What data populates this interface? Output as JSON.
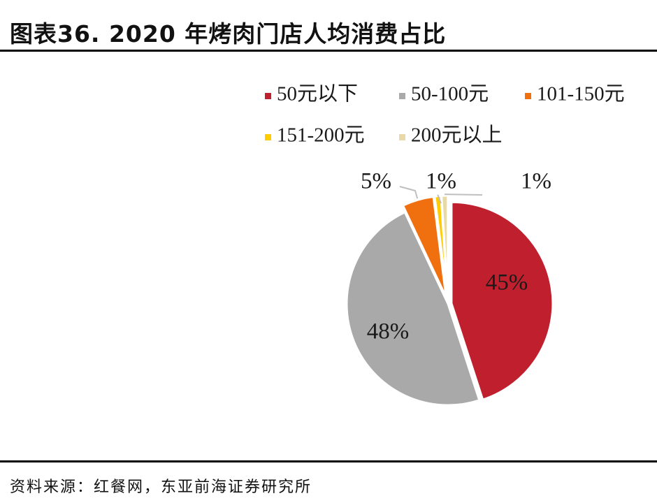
{
  "header": {
    "title": "图表36. 2020 年烤肉门店人均消费占比"
  },
  "footer": {
    "source": "资料来源：红餐网，东亚前海证券研究所"
  },
  "chart_data": {
    "type": "pie",
    "title": "图表36. 2020 年烤肉门店人均消费占比",
    "categories": [
      "50元以下",
      "50-100元",
      "101-150元",
      "151-200元",
      "200元以上"
    ],
    "values": [
      45,
      48,
      5,
      1,
      1
    ],
    "labels": [
      "45%",
      "48%",
      "5%",
      "1%",
      "1%"
    ],
    "colors": [
      "#c0202e",
      "#a9a9a9",
      "#f07010",
      "#ffcc00",
      "#e8d9a8"
    ],
    "legend_position": "top-right"
  }
}
